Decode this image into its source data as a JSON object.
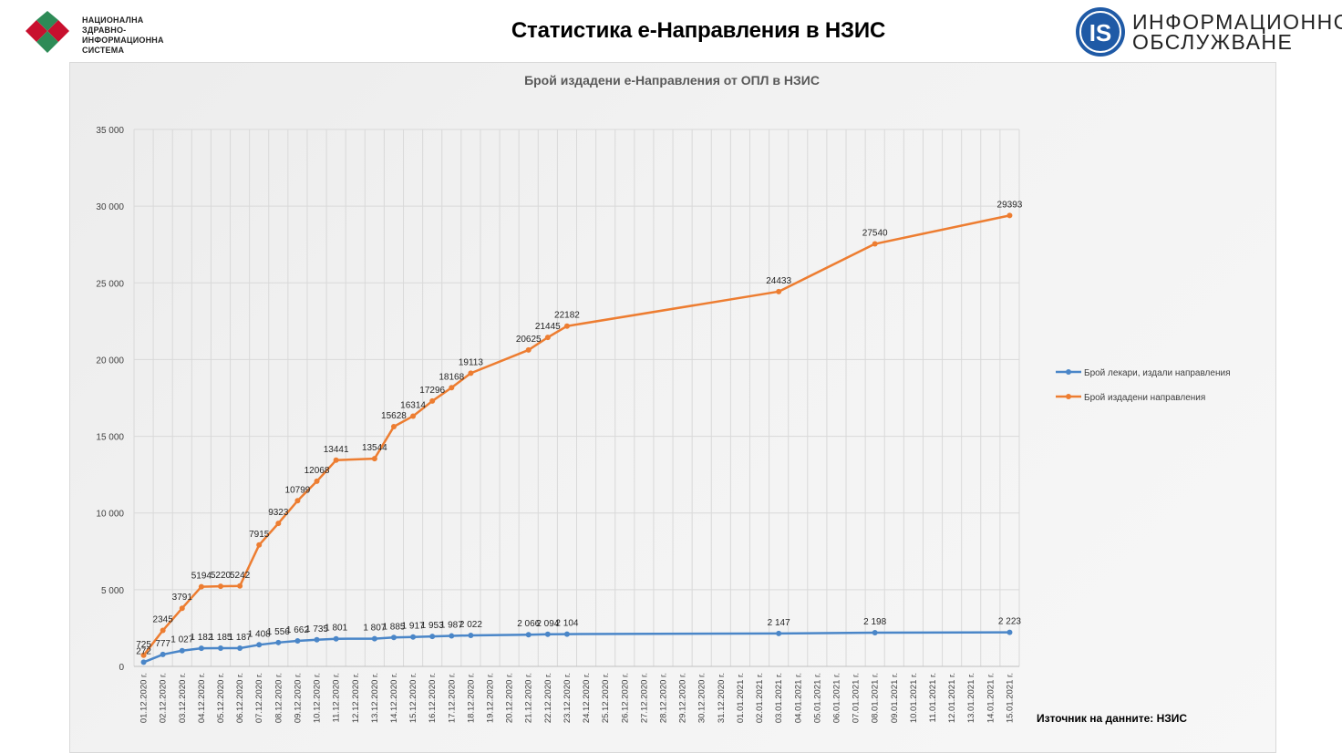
{
  "header": {
    "left_logo": {
      "icon": "nzis-logo-icon",
      "lines": [
        "НАЦИОНАЛНА",
        "ЗДРАВНО-ИНФОРМАЦИОННА",
        "СИСТЕМА"
      ]
    },
    "title": "Статистика е-Направления в НЗИС",
    "right_logo": {
      "icon": "is-logo-icon",
      "mark": "IS",
      "lines": [
        "ИНФОРМАЦИОННО",
        "ОБСЛУЖВАНЕ"
      ]
    }
  },
  "source": "Източник на данните: НЗИС",
  "colors": {
    "orange": "#ED7D31",
    "blue": "#4A86C8",
    "logo_red": "#C8102E",
    "logo_green": "#2E8B57",
    "logo_blue": "#1F5AA6"
  },
  "chart_data": {
    "type": "line",
    "title": "Брой издадени е-Направления от ОПЛ в НЗИС",
    "xlabel": "",
    "ylabel": "",
    "ylim": [
      0,
      35000
    ],
    "yticks": [
      0,
      5000,
      10000,
      15000,
      20000,
      25000,
      30000,
      35000
    ],
    "ytick_labels": [
      "0",
      "5 000",
      "10 000",
      "15 000",
      "20 000",
      "25 000",
      "30 000",
      "35 000"
    ],
    "grid": true,
    "legend_position": "right",
    "categories": [
      "01.12.2020 г.",
      "02.12.2020 г.",
      "03.12.2020 г.",
      "04.12.2020 г.",
      "05.12.2020 г.",
      "06.12.2020 г.",
      "07.12.2020 г.",
      "08.12.2020 г.",
      "09.12.2020 г.",
      "10.12.2020 г.",
      "11.12.2020 г.",
      "12.12.2020 г.",
      "13.12.2020 г.",
      "14.12.2020 г.",
      "15.12.2020 г.",
      "16.12.2020 г.",
      "17.12.2020 г.",
      "18.12.2020 г.",
      "19.12.2020 г.",
      "20.12.2020 г.",
      "21.12.2020 г.",
      "22.12.2020 г.",
      "23.12.2020 г.",
      "24.12.2020 г.",
      "25.12.2020 г.",
      "26.12.2020 г.",
      "27.12.2020 г.",
      "28.12.2020 г.",
      "29.12.2020 г.",
      "30.12.2020 г.",
      "31.12.2020 г.",
      "01.01.2021 г.",
      "02.01.2021 г.",
      "03.01.2021 г.",
      "04.01.2021 г.",
      "05.01.2021 г.",
      "06.01.2021 г.",
      "07.01.2021 г.",
      "08.01.2021 г.",
      "09.01.2021 г.",
      "10.01.2021 г.",
      "11.01.2021 г.",
      "12.01.2021 г.",
      "13.01.2021 г.",
      "14.01.2021 г.",
      "15.01.2021 г."
    ],
    "series": [
      {
        "name": "Брой лекари, издали направления",
        "color": "#4A86C8",
        "points": [
          {
            "x": "01.12.2020 г.",
            "y": 272,
            "label": "272"
          },
          {
            "x": "02.12.2020 г.",
            "y": 777,
            "label": "777"
          },
          {
            "x": "03.12.2020 г.",
            "y": 1027,
            "label": "1 027"
          },
          {
            "x": "04.12.2020 г.",
            "y": 1182,
            "label": "1 182"
          },
          {
            "x": "05.12.2020 г.",
            "y": 1185,
            "label": "1 185"
          },
          {
            "x": "06.12.2020 г.",
            "y": 1187,
            "label": "1 187"
          },
          {
            "x": "07.12.2020 г.",
            "y": 1408,
            "label": "1 408"
          },
          {
            "x": "08.12.2020 г.",
            "y": 1556,
            "label": "1 556"
          },
          {
            "x": "09.12.2020 г.",
            "y": 1662,
            "label": "1 662"
          },
          {
            "x": "10.12.2020 г.",
            "y": 1735,
            "label": "1 735"
          },
          {
            "x": "11.12.2020 г.",
            "y": 1801,
            "label": "1 801"
          },
          {
            "x": "13.12.2020 г.",
            "y": 1807,
            "label": "1 807"
          },
          {
            "x": "14.12.2020 г.",
            "y": 1885,
            "label": "1 885"
          },
          {
            "x": "15.12.2020 г.",
            "y": 1917,
            "label": "1 917"
          },
          {
            "x": "16.12.2020 г.",
            "y": 1953,
            "label": "1 953"
          },
          {
            "x": "17.12.2020 г.",
            "y": 1987,
            "label": "1 987"
          },
          {
            "x": "18.12.2020 г.",
            "y": 2022,
            "label": "2 022"
          },
          {
            "x": "21.12.2020 г.",
            "y": 2066,
            "label": "2 066"
          },
          {
            "x": "22.12.2020 г.",
            "y": 2094,
            "label": "2 094"
          },
          {
            "x": "23.12.2020 г.",
            "y": 2104,
            "label": "2 104"
          },
          {
            "x": "03.01.2021 г.",
            "y": 2147,
            "label": "2 147"
          },
          {
            "x": "08.01.2021 г.",
            "y": 2198,
            "label": "2 198"
          },
          {
            "x": "15.01.2021 г.",
            "y": 2223,
            "label": "2 223"
          }
        ]
      },
      {
        "name": "Брой издадени направления",
        "color": "#ED7D31",
        "points": [
          {
            "x": "01.12.2020 г.",
            "y": 725,
            "label": "725"
          },
          {
            "x": "02.12.2020 г.",
            "y": 2345,
            "label": "2345"
          },
          {
            "x": "03.12.2020 г.",
            "y": 3791,
            "label": "3791"
          },
          {
            "x": "04.12.2020 г.",
            "y": 5194,
            "label": "5194"
          },
          {
            "x": "05.12.2020 г.",
            "y": 5220,
            "label": "5220"
          },
          {
            "x": "06.12.2020 г.",
            "y": 5242,
            "label": "5242"
          },
          {
            "x": "07.12.2020 г.",
            "y": 7915,
            "label": "7915"
          },
          {
            "x": "08.12.2020 г.",
            "y": 9323,
            "label": "9323"
          },
          {
            "x": "09.12.2020 г.",
            "y": 10799,
            "label": "10799"
          },
          {
            "x": "10.12.2020 г.",
            "y": 12068,
            "label": "12068"
          },
          {
            "x": "11.12.2020 г.",
            "y": 13441,
            "label": "13441"
          },
          {
            "x": "13.12.2020 г.",
            "y": 13544,
            "label": "13544"
          },
          {
            "x": "14.12.2020 г.",
            "y": 15628,
            "label": "15628"
          },
          {
            "x": "15.12.2020 г.",
            "y": 16314,
            "label": "16314"
          },
          {
            "x": "16.12.2020 г.",
            "y": 17296,
            "label": "17296"
          },
          {
            "x": "17.12.2020 г.",
            "y": 18168,
            "label": "18168"
          },
          {
            "x": "18.12.2020 г.",
            "y": 19113,
            "label": "19113"
          },
          {
            "x": "21.12.2020 г.",
            "y": 20625,
            "label": "20625"
          },
          {
            "x": "22.12.2020 г.",
            "y": 21445,
            "label": "21445"
          },
          {
            "x": "23.12.2020 г.",
            "y": 22182,
            "label": "22182"
          },
          {
            "x": "03.01.2021 г.",
            "y": 24433,
            "label": "24433"
          },
          {
            "x": "08.01.2021 г.",
            "y": 27540,
            "label": "27540"
          },
          {
            "x": "15.01.2021 г.",
            "y": 29393,
            "label": "29393"
          }
        ]
      }
    ]
  }
}
